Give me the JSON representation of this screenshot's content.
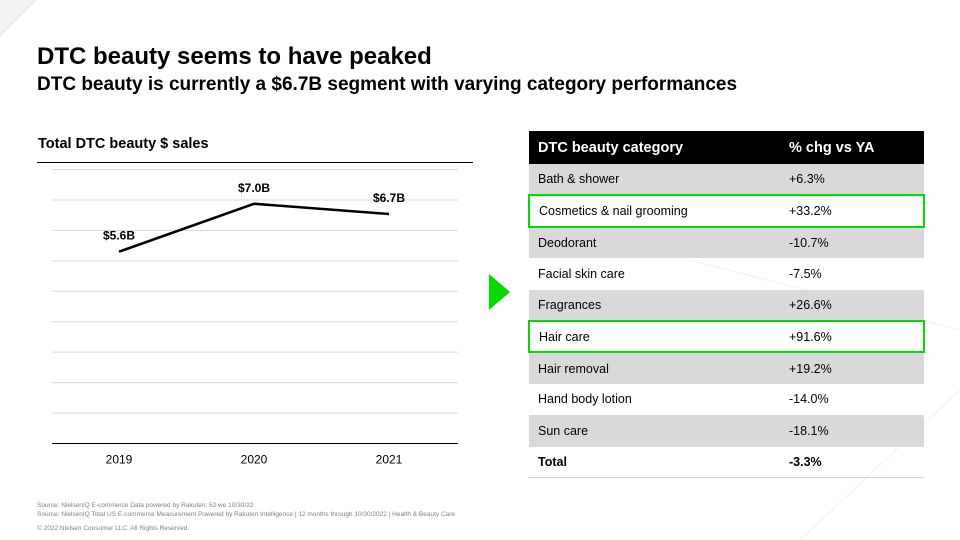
{
  "slide": {
    "title": "DTC beauty seems to have peaked",
    "subtitle": "DTC beauty is currently a $6.7B segment with varying category performances"
  },
  "chart_data": {
    "type": "line",
    "title": "Total DTC beauty $ sales",
    "categories": [
      "2019",
      "2020",
      "2021"
    ],
    "series": [
      {
        "values": [
          5.6,
          7.0,
          6.7
        ]
      }
    ],
    "data_labels": [
      "$5.6B",
      "$7.0B",
      "$6.7B"
    ],
    "ylim": [
      0,
      8
    ],
    "grid": true,
    "line_color": "#000000"
  },
  "table": {
    "headers": [
      "DTC beauty category",
      "% chg vs YA"
    ],
    "highlight_color": "#00dc00",
    "rows": [
      {
        "category": "Bath & shower",
        "change": "+6.3%",
        "shaded": true,
        "highlighted": false
      },
      {
        "category": "Cosmetics & nail grooming",
        "change": "+33.2%",
        "shaded": false,
        "highlighted": true
      },
      {
        "category": "Deodorant",
        "change": "-10.7%",
        "shaded": true,
        "highlighted": false
      },
      {
        "category": "Facial skin care",
        "change": "-7.5%",
        "shaded": false,
        "highlighted": false
      },
      {
        "category": "Fragrances",
        "change": "+26.6%",
        "shaded": true,
        "highlighted": false
      },
      {
        "category": "Hair care",
        "change": "+91.6%",
        "shaded": false,
        "highlighted": true
      },
      {
        "category": "Hair removal",
        "change": "+19.2%",
        "shaded": true,
        "highlighted": false
      },
      {
        "category": "Hand body lotion",
        "change": "-14.0%",
        "shaded": false,
        "highlighted": false
      },
      {
        "category": "Sun care",
        "change": "-18.1%",
        "shaded": true,
        "highlighted": false
      }
    ],
    "total": {
      "category": "Total",
      "change": "-3.3%"
    }
  },
  "arrow_icon": "right-triangle-arrow-icon",
  "arrow_color": "#00dc00",
  "footer": {
    "source1": "Source: NielsenIQ E-commerce Data powered by Rakuten; 52 we 10/30/22",
    "source2": "Source: NielsenIQ Total US E-commerce Measurement  Powered by Rakuten Intelligence  |  12 months through  10/30/2022  |  Health & Beauty  Care",
    "copyright": "© 2022 Nielsen Consumer LLC. All Rights Reserved."
  }
}
